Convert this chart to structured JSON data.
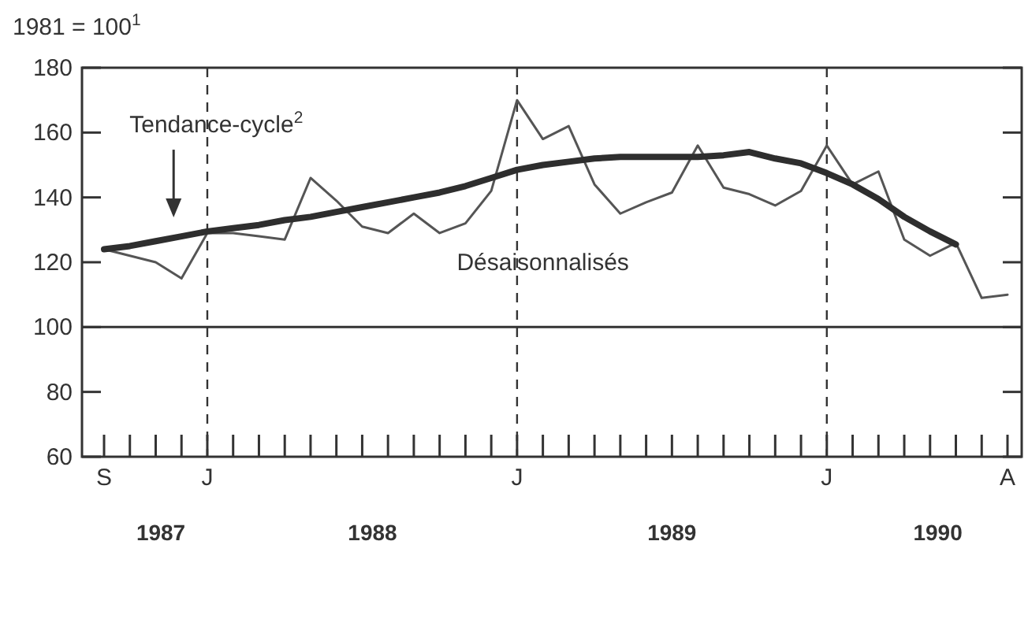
{
  "chart_data": {
    "type": "line",
    "ylabel": "1981 = 100$^{1}$",
    "categories": [
      "S",
      null,
      null,
      null,
      "J",
      null,
      null,
      null,
      null,
      null,
      null,
      null,
      null,
      null,
      null,
      null,
      "J",
      null,
      null,
      null,
      null,
      null,
      null,
      null,
      null,
      null,
      null,
      null,
      "J",
      null,
      null,
      null,
      null,
      null,
      null,
      "A"
    ],
    "series": [
      {
        "name": "Tendance-cycle$^{2}$",
        "color": "#2e2e2e",
        "values": [
          124,
          125,
          126.5,
          128,
          129.5,
          130.5,
          131.5,
          133,
          134,
          135.5,
          137,
          138.5,
          140,
          141.5,
          143.5,
          146,
          148.5,
          150,
          151,
          152,
          152.5,
          152.5,
          152.5,
          152.5,
          153,
          154,
          152,
          150.5,
          147.5,
          144,
          139.5,
          134,
          129.5,
          125.5,
          null,
          null
        ]
      },
      {
        "name": "Désaisonnalisés",
        "color": "#555555",
        "values": [
          124,
          122,
          120,
          115,
          129,
          129,
          128,
          127,
          146,
          139,
          131,
          129,
          135,
          129,
          132,
          142,
          170,
          158,
          162,
          144,
          135,
          138.5,
          141.5,
          156,
          143,
          141,
          137.5,
          142,
          156,
          144,
          148,
          127,
          122,
          126,
          109,
          110
        ]
      }
    ],
    "annotations": [
      "1987",
      "1988",
      "1989",
      "1990"
    ],
    "ylim": [
      60,
      180
    ],
    "yticks": [
      60,
      80,
      100,
      120,
      140,
      160,
      180
    ],
    "ref_lines": [
      {
        "axis": "y",
        "value": 100,
        "line_style": "solid"
      }
    ],
    "grid": "x",
    "marker": "none",
    "line_style": "solid"
  }
}
